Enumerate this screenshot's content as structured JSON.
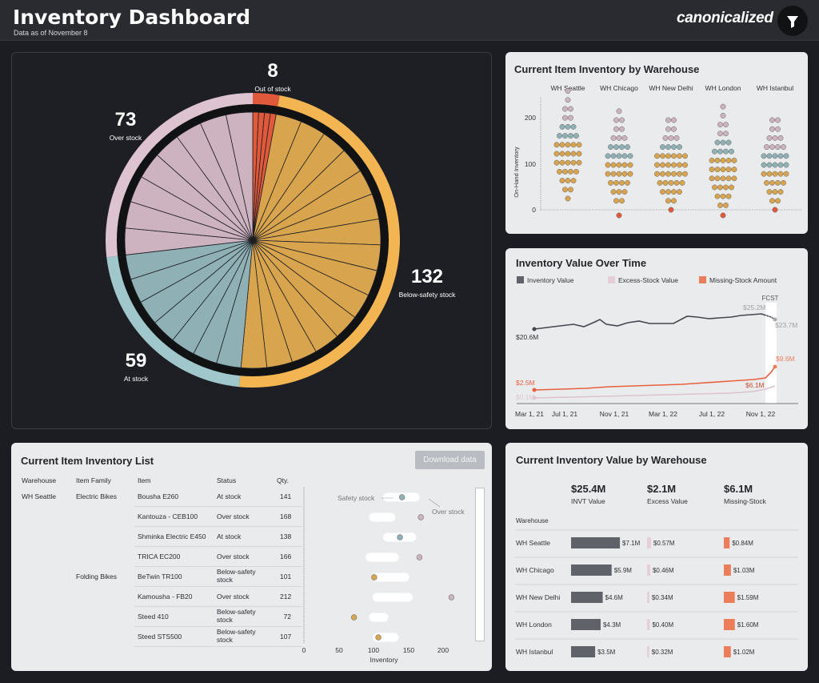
{
  "header": {
    "title": "Inventory Dashboard",
    "subtitle": "Data as of November 8",
    "brand": "canonicalized"
  },
  "colors": {
    "out": "#e0593a",
    "below": "#d9a44e",
    "below_ring": "#f2b552",
    "over": "#cdb2c0",
    "over_ring": "#ddc2cf",
    "at": "#8fb1b6",
    "at_ring": "#9fc7cc",
    "value": "#5f6369",
    "excess": "#e7cdd8",
    "missing": "#ec7d5a"
  },
  "pie": {
    "segments": [
      {
        "key": "out",
        "count": "8",
        "label": "Out of stock"
      },
      {
        "key": "below",
        "count": "132",
        "label": "Below-safety stock"
      },
      {
        "key": "at",
        "count": "59",
        "label": "At stock"
      },
      {
        "key": "over",
        "count": "73",
        "label": "Over stock"
      }
    ]
  },
  "warehouse_chart": {
    "title": "Current Item Inventory by Warehouse",
    "warehouses": [
      "WH Seattle",
      "WH Chicago",
      "WH New Delhi",
      "WH London",
      "WH Istanbul"
    ],
    "y_axis_label": "On-Hand Inventory",
    "y_ticks": [
      "200",
      "100",
      "0"
    ]
  },
  "value_chart": {
    "title": "Inventory Value Over Time",
    "legend": [
      "Inventory Value",
      "Excess-Stock Value",
      "Missing-Stock Amount"
    ],
    "x_ticks": [
      "Mar 1, 21",
      "Jul 1, 21",
      "Nov 1, 21",
      "Mar 1, 22",
      "Jul 1, 22",
      "Nov 1, 22"
    ],
    "forecast_label": "FCST",
    "labels": {
      "inv_start": "$20.6M",
      "inv_peak": "$25.2M",
      "inv_end": "$23.7M",
      "miss_start": "$2.5M",
      "miss_mid": "$6.1M",
      "miss_end": "$9.6M",
      "exc_start": "$0.1M"
    }
  },
  "list": {
    "title": "Current Item Inventory List",
    "download_label": "Download data",
    "columns": [
      "Warehouse",
      "Item Family",
      "Item",
      "Status",
      "Qty."
    ],
    "rows": [
      {
        "warehouse": "WH Seattle",
        "family": "Electric Bikes",
        "item": "Bousha E260",
        "status": "At stock",
        "qty": "141"
      },
      {
        "warehouse": "",
        "family": "",
        "item": "Kantouza - CEB100",
        "status": "Over stock",
        "qty": "168"
      },
      {
        "warehouse": "",
        "family": "",
        "item": "Shminka Electric E450",
        "status": "At stock",
        "qty": "138"
      },
      {
        "warehouse": "",
        "family": "",
        "item": "TRICA EC200",
        "status": "Over stock",
        "qty": "166"
      },
      {
        "warehouse": "",
        "family": "Folding Bikes",
        "item": "BeTwin TR100",
        "status": "Below-safety stock",
        "qty": "101"
      },
      {
        "warehouse": "",
        "family": "",
        "item": "Kamousha - FB20",
        "status": "Over stock",
        "qty": "212"
      },
      {
        "warehouse": "",
        "family": "",
        "item": "Steed 410",
        "status": "Below-safety stock",
        "qty": "72"
      },
      {
        "warehouse": "",
        "family": "",
        "item": "Steed STS500",
        "status": "Below-safety stock",
        "qty": "107"
      }
    ],
    "dot_plot": {
      "safety_label": "Safety stock",
      "over_label": "Over stock",
      "x_ticks": [
        "0",
        "50",
        "100",
        "150",
        "200"
      ],
      "x_label": "Inventory",
      "points": [
        {
          "value": 141,
          "min": 120,
          "max": 160,
          "status": "at"
        },
        {
          "value": 168,
          "min": 100,
          "max": 125,
          "status": "over"
        },
        {
          "value": 138,
          "min": 120,
          "max": 155,
          "status": "at"
        },
        {
          "value": 166,
          "min": 95,
          "max": 130,
          "status": "over"
        },
        {
          "value": 101,
          "min": 105,
          "max": 145,
          "status": "below"
        },
        {
          "value": 212,
          "min": 105,
          "max": 150,
          "status": "over"
        },
        {
          "value": 72,
          "min": 100,
          "max": 115,
          "status": "below"
        },
        {
          "value": 107,
          "min": 105,
          "max": 130,
          "status": "below"
        }
      ]
    }
  },
  "value_by_wh": {
    "title": "Current Inventory Value by Warehouse",
    "totals": [
      {
        "value": "$25.4M",
        "label": "INVT Value"
      },
      {
        "value": "$2.1M",
        "label": "Excess Value"
      },
      {
        "value": "$6.1M",
        "label": "Missing-Stock"
      }
    ],
    "row_header": "Warehouse",
    "rows": [
      {
        "name": "WH Seattle",
        "invt": "$7.1M",
        "invt_num": 7.1,
        "excess": "$0.57M",
        "excess_num": 0.57,
        "missing": "$0.84M",
        "missing_num": 0.84
      },
      {
        "name": "WH Chicago",
        "invt": "$5.9M",
        "invt_num": 5.9,
        "excess": "$0.46M",
        "excess_num": 0.46,
        "missing": "$1.03M",
        "missing_num": 1.03
      },
      {
        "name": "WH New Delhi",
        "invt": "$4.6M",
        "invt_num": 4.6,
        "excess": "$0.34M",
        "excess_num": 0.34,
        "missing": "$1.59M",
        "missing_num": 1.59
      },
      {
        "name": "WH London",
        "invt": "$4.3M",
        "invt_num": 4.3,
        "excess": "$0.40M",
        "excess_num": 0.4,
        "missing": "$1.60M",
        "missing_num": 1.6
      },
      {
        "name": "WH Istanbul",
        "invt": "$3.5M",
        "invt_num": 3.5,
        "excess": "$0.32M",
        "excess_num": 0.32,
        "missing": "$1.02M",
        "missing_num": 1.02
      }
    ]
  }
}
